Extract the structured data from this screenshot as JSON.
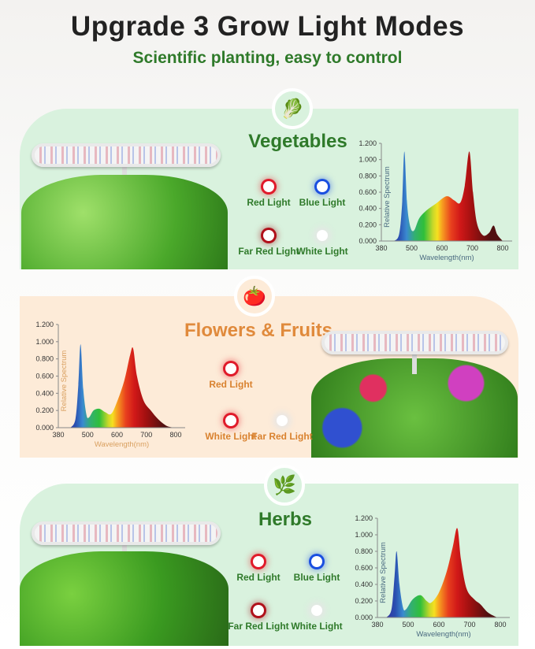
{
  "header": {
    "title": "Upgrade 3 Grow Light Modes",
    "subtitle": "Scientific planting, easy to control"
  },
  "colors": {
    "green": "#2f7a2a",
    "orange": "#e08a3c",
    "green_panel": "#d9f2de",
    "peach_panel": "#fdebd8"
  },
  "sections": [
    {
      "title": "Vegetables",
      "icon": "lettuce-icon",
      "lights": [
        "Red Light",
        "Blue Light",
        "Far Red Light",
        "White Light"
      ]
    },
    {
      "title": "Flowers & Fruits",
      "icon": "tomato-icon",
      "lights": [
        "Red Light",
        "White Light",
        "Far Red Light"
      ]
    },
    {
      "title": "Herbs",
      "icon": "basil-leaf-icon",
      "lights": [
        "Red Light",
        "Blue Light",
        "Far Red Light",
        "White Light"
      ]
    }
  ],
  "chart_data": [
    {
      "type": "area",
      "xlabel": "Wavelength(nm)",
      "ylabel": "Relative Spectrum",
      "xticks": [
        380,
        500,
        600,
        700,
        800
      ],
      "yticks": [
        "0.000",
        "0.200",
        "0.400",
        "0.600",
        "0.800",
        "1.000",
        "1.200"
      ],
      "ylim": [
        0,
        1.2
      ],
      "grid": false,
      "points": [
        [
          430,
          0
        ],
        [
          450,
          0.08
        ],
        [
          462,
          0.45
        ],
        [
          471,
          1.1
        ],
        [
          482,
          0.45
        ],
        [
          495,
          0.17
        ],
        [
          508,
          0.13
        ],
        [
          525,
          0.28
        ],
        [
          550,
          0.38
        ],
        [
          580,
          0.46
        ],
        [
          615,
          0.55
        ],
        [
          640,
          0.5
        ],
        [
          660,
          0.47
        ],
        [
          675,
          0.68
        ],
        [
          690,
          1.1
        ],
        [
          702,
          0.6
        ],
        [
          715,
          0.22
        ],
        [
          735,
          0.07
        ],
        [
          755,
          0.1
        ],
        [
          770,
          0.19
        ],
        [
          782,
          0.08
        ],
        [
          800,
          0
        ]
      ]
    },
    {
      "type": "area",
      "xlabel": "Wavelength(nm)",
      "ylabel": "Relative Spectrum",
      "xticks": [
        380,
        500,
        600,
        700,
        800
      ],
      "yticks": [
        "0.000",
        "0.200",
        "0.400",
        "0.600",
        "0.800",
        "1.000",
        "1.200"
      ],
      "ylim": [
        0,
        1.2
      ],
      "grid": false,
      "points": [
        [
          430,
          0
        ],
        [
          450,
          0.1
        ],
        [
          462,
          0.5
        ],
        [
          471,
          0.97
        ],
        [
          482,
          0.45
        ],
        [
          495,
          0.15
        ],
        [
          505,
          0.12
        ],
        [
          520,
          0.2
        ],
        [
          540,
          0.22
        ],
        [
          560,
          0.18
        ],
        [
          580,
          0.16
        ],
        [
          600,
          0.3
        ],
        [
          625,
          0.55
        ],
        [
          645,
          0.85
        ],
        [
          655,
          0.92
        ],
        [
          668,
          0.6
        ],
        [
          690,
          0.32
        ],
        [
          715,
          0.2
        ],
        [
          740,
          0.1
        ],
        [
          770,
          0.02
        ],
        [
          800,
          0
        ]
      ]
    },
    {
      "type": "area",
      "xlabel": "Wavelength(nm)",
      "ylabel": "Relative Spectrum",
      "xticks": [
        380,
        500,
        600,
        700,
        800
      ],
      "yticks": [
        "0.000",
        "0.200",
        "0.400",
        "0.600",
        "0.800",
        "1.000",
        "1.200"
      ],
      "ylim": [
        0,
        1.2
      ],
      "grid": false,
      "points": [
        [
          415,
          0
        ],
        [
          435,
          0.1
        ],
        [
          447,
          0.5
        ],
        [
          455,
          0.8
        ],
        [
          466,
          0.4
        ],
        [
          480,
          0.12
        ],
        [
          492,
          0.1
        ],
        [
          515,
          0.22
        ],
        [
          540,
          0.27
        ],
        [
          560,
          0.2
        ],
        [
          575,
          0.18
        ],
        [
          600,
          0.3
        ],
        [
          625,
          0.55
        ],
        [
          645,
          0.85
        ],
        [
          660,
          1.08
        ],
        [
          672,
          0.7
        ],
        [
          690,
          0.35
        ],
        [
          715,
          0.22
        ],
        [
          735,
          0.16
        ],
        [
          760,
          0.06
        ],
        [
          790,
          0
        ]
      ]
    }
  ]
}
